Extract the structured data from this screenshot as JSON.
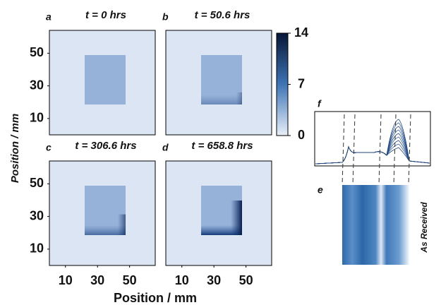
{
  "chart_data": {
    "type": "heatmap",
    "panels": [
      {
        "label": "a",
        "title": "t = 0 hrs"
      },
      {
        "label": "b",
        "title": "t = 50.6 hrs"
      },
      {
        "label": "c",
        "title": "t = 306.6 hrs"
      },
      {
        "label": "d",
        "title": "t = 658.8 hrs"
      }
    ],
    "xlabel": "Position / mm",
    "ylabel": "Position / mm",
    "xlim": [
      0,
      66
    ],
    "xticks": [
      10,
      30,
      50
    ],
    "ylim": [
      0,
      64
    ],
    "yticks": [
      10,
      30,
      50
    ],
    "colorbar": {
      "lim": [
        0,
        14
      ],
      "ticks": [
        0,
        7,
        14
      ],
      "colors": [
        "#e8eff9",
        "#071636"
      ]
    }
  },
  "inset": {
    "f_label": "f",
    "e_label": "e",
    "e_caption": "As Received"
  }
}
